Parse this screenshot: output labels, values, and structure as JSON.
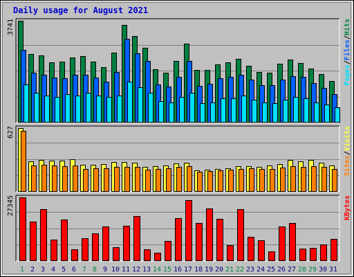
{
  "title": "Daily usage for August 2021",
  "colors": {
    "frame_bg": "#c0c0c0",
    "plot_bg": "#c0c0c0",
    "title": "#0000cc",
    "grid": "#808080",
    "hits": "#008040",
    "files": "#0060ff",
    "pages": "#00e0ff",
    "visits": "#ffff40",
    "sites": "#ff8000",
    "kbytes": "#ff0000",
    "weekend_label": "#008040",
    "weekday_label": "#000080"
  },
  "chart_data": [
    {
      "type": "bar",
      "panel": "hits-files-pages",
      "ymax_label": "3741",
      "ylim": [
        0,
        3741
      ],
      "legend": [
        "Pages",
        "/",
        "Files",
        "/",
        "Hits"
      ],
      "categories": [
        "1",
        "2",
        "3",
        "4",
        "5",
        "6",
        "7",
        "8",
        "9",
        "10",
        "11",
        "12",
        "13",
        "14",
        "15",
        "16",
        "17",
        "18",
        "19",
        "20",
        "21",
        "22",
        "23",
        "24",
        "25",
        "26",
        "27",
        "28",
        "29",
        "30",
        "31"
      ],
      "series": [
        {
          "name": "Hits",
          "values": [
            3741,
            2515,
            2468,
            2226,
            2252,
            2384,
            2446,
            2232,
            2035,
            2576,
            3589,
            3177,
            2760,
            1947,
            1831,
            2264,
            2903,
            1922,
            1942,
            2132,
            2218,
            2347,
            2076,
            1870,
            1824,
            2153,
            2319,
            2198,
            1991,
            1792,
            1526
          ]
        },
        {
          "name": "Files",
          "values": [
            2660,
            1839,
            1749,
            1659,
            1619,
            1747,
            1747,
            1660,
            1497,
            1869,
            3074,
            2542,
            2253,
            1412,
            1317,
            1688,
            2270,
            1348,
            1414,
            1634,
            1689,
            1758,
            1585,
            1384,
            1376,
            1583,
            1707,
            1672,
            1438,
            1276,
            1048
          ]
        },
        {
          "name": "Pages",
          "values": [
            1400,
            1100,
            1000,
            950,
            1050,
            1000,
            1100,
            1000,
            950,
            1000,
            1500,
            1300,
            1100,
            800,
            750,
            950,
            1100,
            700,
            750,
            900,
            900,
            1000,
            850,
            750,
            700,
            850,
            950,
            900,
            750,
            650,
            550
          ]
        }
      ]
    },
    {
      "type": "bar",
      "panel": "visits-sites",
      "ymax_label": "627",
      "ylim": [
        0,
        627
      ],
      "legend": [
        "Sites",
        "/",
        "Visits"
      ],
      "categories": [
        "1",
        "2",
        "3",
        "4",
        "5",
        "6",
        "7",
        "8",
        "9",
        "10",
        "11",
        "12",
        "13",
        "14",
        "15",
        "16",
        "17",
        "18",
        "19",
        "20",
        "21",
        "22",
        "23",
        "24",
        "25",
        "26",
        "27",
        "28",
        "29",
        "30",
        "31"
      ],
      "series": [
        {
          "name": "Visits",
          "values": [
            627,
            300,
            315,
            305,
            310,
            320,
            265,
            265,
            270,
            290,
            290,
            288,
            245,
            255,
            262,
            282,
            288,
            208,
            215,
            222,
            235,
            255,
            255,
            245,
            258,
            272,
            315,
            302,
            312,
            284,
            258
          ]
        },
        {
          "name": "Sites",
          "values": [
            600,
            260,
            265,
            260,
            255,
            258,
            228,
            230,
            230,
            242,
            246,
            246,
            215,
            228,
            233,
            246,
            255,
            195,
            206,
            209,
            220,
            225,
            230,
            228,
            226,
            238,
            250,
            246,
            250,
            244,
            228
          ]
        }
      ]
    },
    {
      "type": "bar",
      "panel": "kbytes",
      "ymax_label": "27345",
      "ylim": [
        0,
        27345
      ],
      "legend": [
        "KBytes"
      ],
      "categories": [
        "1",
        "2",
        "3",
        "4",
        "5",
        "6",
        "7",
        "8",
        "9",
        "10",
        "11",
        "12",
        "13",
        "14",
        "15",
        "16",
        "17",
        "18",
        "19",
        "20",
        "21",
        "22",
        "23",
        "24",
        "25",
        "26",
        "27",
        "28",
        "29",
        "30",
        "31"
      ],
      "series": [
        {
          "name": "KBytes",
          "values": [
            27345,
            16900,
            22400,
            9200,
            17700,
            5000,
            9800,
            12000,
            14800,
            5800,
            15300,
            19200,
            5000,
            3700,
            8500,
            18500,
            26300,
            16200,
            22700,
            18100,
            6700,
            22300,
            10300,
            8900,
            4300,
            15000,
            16400,
            5300,
            5600,
            7000,
            9600
          ]
        }
      ]
    }
  ],
  "x_axis": {
    "labels": [
      "1",
      "2",
      "3",
      "4",
      "5",
      "6",
      "7",
      "8",
      "9",
      "10",
      "11",
      "12",
      "13",
      "14",
      "15",
      "16",
      "17",
      "18",
      "19",
      "20",
      "21",
      "22",
      "23",
      "24",
      "25",
      "26",
      "27",
      "28",
      "29",
      "30",
      "31"
    ],
    "weekend_days": [
      "1",
      "7",
      "8",
      "14",
      "15",
      "21",
      "22",
      "28",
      "29"
    ]
  }
}
